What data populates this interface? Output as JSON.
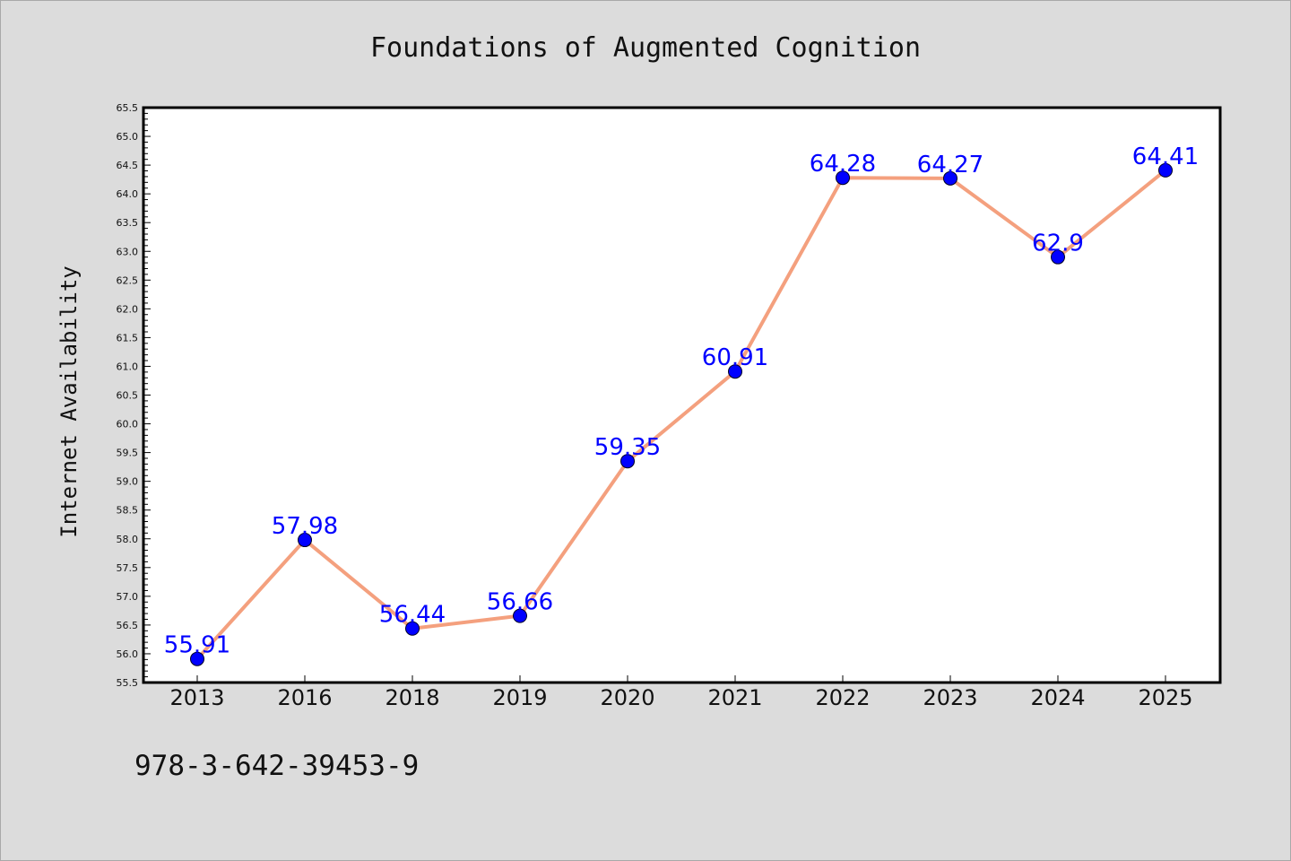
{
  "chart_data": {
    "type": "line",
    "title": "Foundations of Augmented Cognition",
    "xlabel": "",
    "ylabel": "Internet Availability",
    "categories": [
      "2013",
      "2016",
      "2018",
      "2019",
      "2020",
      "2021",
      "2022",
      "2023",
      "2024",
      "2025"
    ],
    "series": [
      {
        "values": [
          55.91,
          57.98,
          56.44,
          56.66,
          59.35,
          60.91,
          64.28,
          64.27,
          62.9,
          64.41
        ],
        "line_color": "#f4a07e",
        "marker_color": "#0000ff",
        "label_color": "#0000ff"
      }
    ],
    "data_labels": [
      "55.91",
      "57.98",
      "56.44",
      "56.66",
      "59.35",
      "60.91",
      "64.28",
      "64.27",
      "62.9",
      "64.41"
    ],
    "ylim": [
      55.5,
      65.5
    ],
    "yticks": [
      "55.5",
      "56.0",
      "56.5",
      "57.0",
      "57.5",
      "58.0",
      "58.5",
      "59.0",
      "59.5",
      "60.0",
      "60.5",
      "61.0",
      "61.5",
      "62.0",
      "62.5",
      "63.0",
      "63.5",
      "64.0",
      "64.5",
      "65.0",
      "65.5"
    ],
    "grid": false,
    "legend": "none"
  },
  "footer": {
    "isbn": "978-3-642-39453-9"
  },
  "colors": {
    "background": "#dcdcdc",
    "plot_area": "#ffffff",
    "axis": "#000000"
  }
}
